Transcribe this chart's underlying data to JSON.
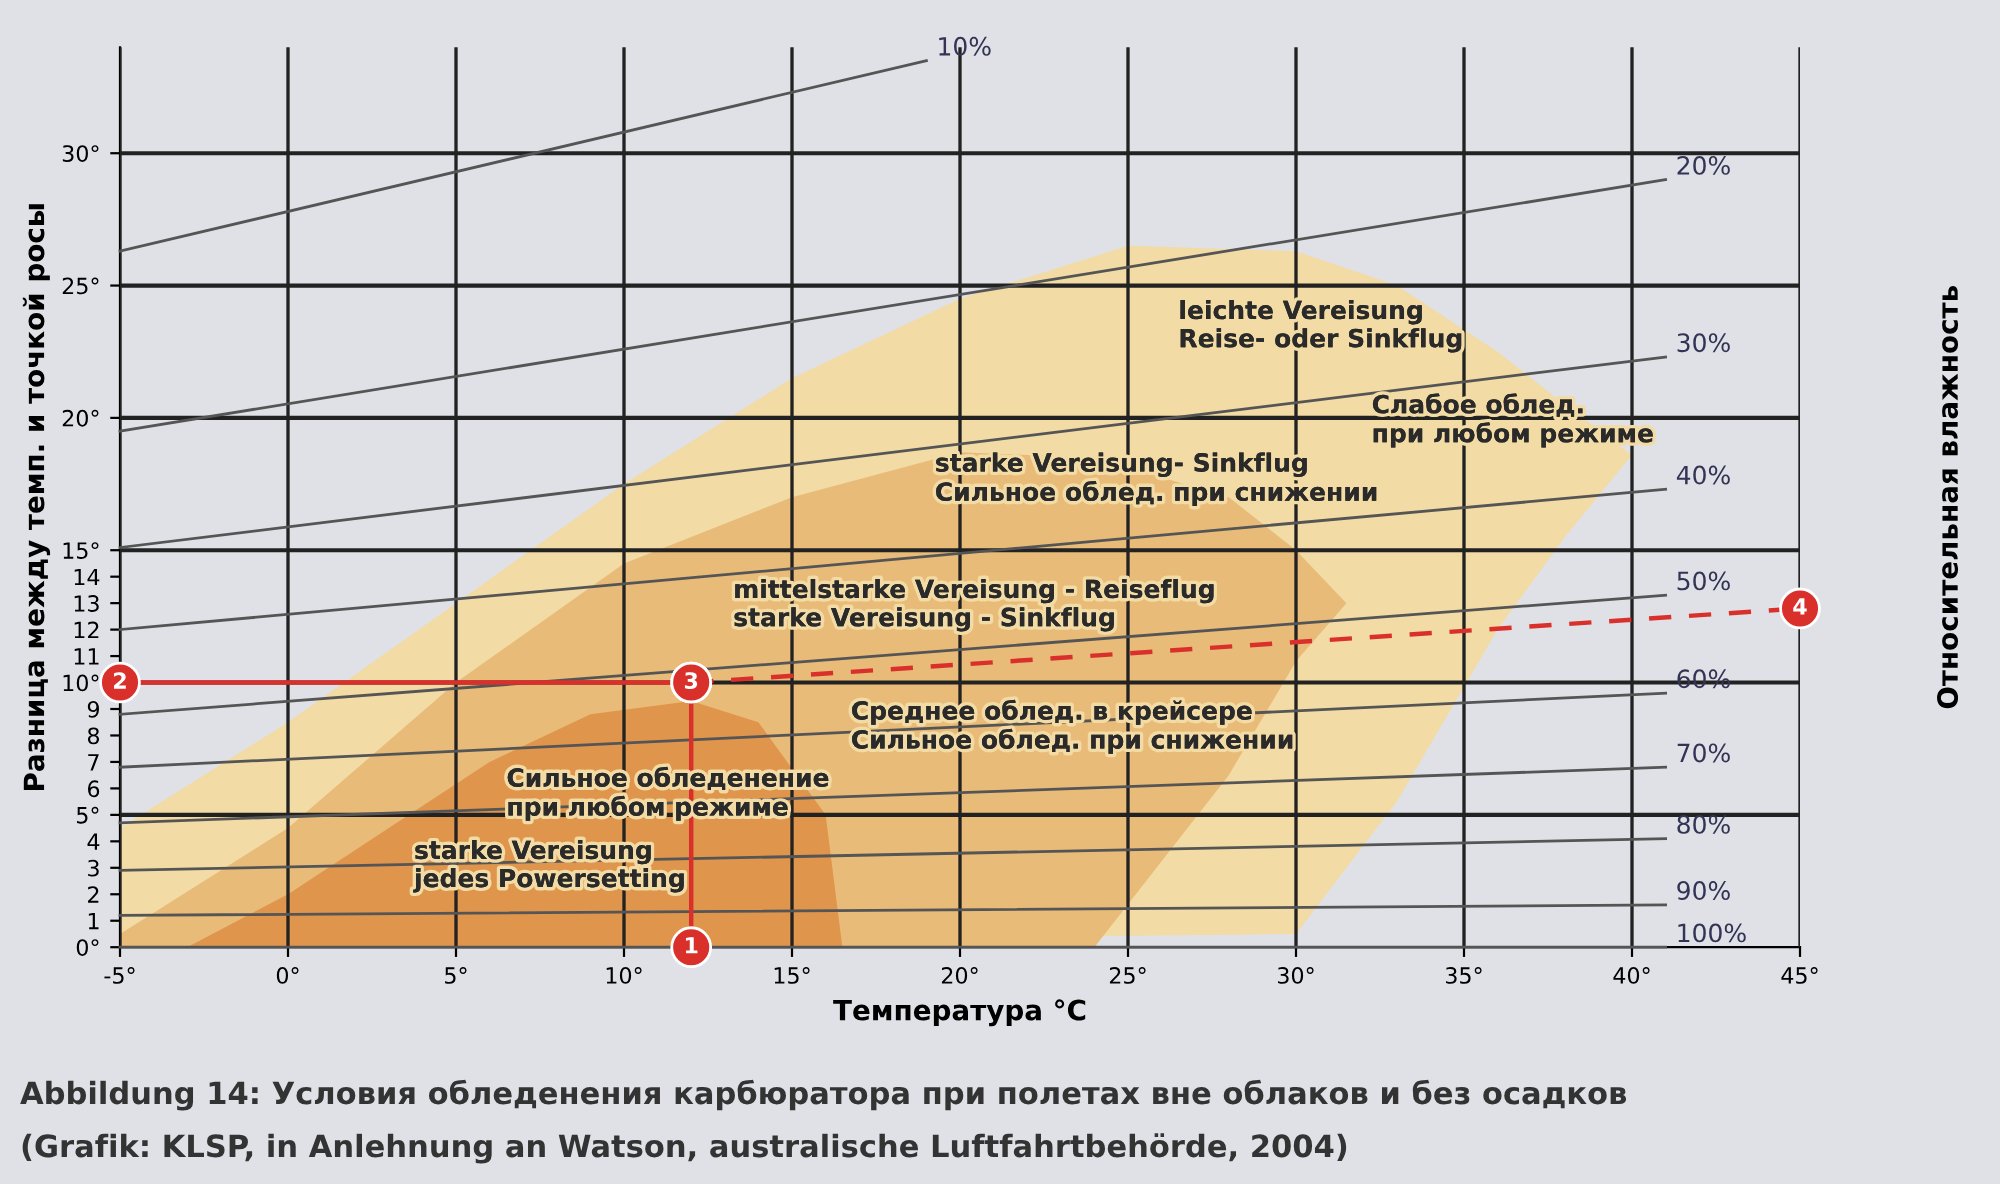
{
  "chart_data": {
    "type": "line",
    "xlabel": "Температура °C",
    "ylabel": "Разница между темп. и точкой росы",
    "y2label": "Относительная влажность",
    "xlim": [
      -5,
      45
    ],
    "ylim": [
      0,
      34
    ],
    "xticks": [
      {
        "value": -5,
        "label": "-5°"
      },
      {
        "value": 0,
        "label": "0°"
      },
      {
        "value": 5,
        "label": "5°"
      },
      {
        "value": 10,
        "label": "10°"
      },
      {
        "value": 15,
        "label": "15°"
      },
      {
        "value": 20,
        "label": "20°"
      },
      {
        "value": 25,
        "label": "25°"
      },
      {
        "value": 30,
        "label": "30°"
      },
      {
        "value": 35,
        "label": "35°"
      },
      {
        "value": 40,
        "label": "40°"
      },
      {
        "value": 45,
        "label": "45°"
      }
    ],
    "yticks": [
      {
        "value": 0,
        "label": "0°"
      },
      1,
      2,
      3,
      4,
      {
        "value": 5,
        "label": "5°"
      },
      6,
      7,
      8,
      9,
      {
        "value": 10,
        "label": "10°"
      },
      11,
      12,
      13,
      14,
      {
        "value": 15,
        "label": "15°"
      },
      {
        "value": 20,
        "label": "20°"
      },
      {
        "value": 25,
        "label": "25°"
      },
      {
        "value": 30,
        "label": "30°"
      }
    ],
    "grid": "x",
    "ref_lines": [
      {
        "axis": "y",
        "value": 5,
        "color": "#222222"
      },
      {
        "axis": "y",
        "value": 10,
        "color": "#222222"
      },
      {
        "axis": "y",
        "value": 15,
        "color": "#222222"
      },
      {
        "axis": "y",
        "value": 20,
        "color": "#222222"
      },
      {
        "axis": "y",
        "value": 25,
        "color": "#222222"
      },
      {
        "axis": "y",
        "value": 30,
        "color": "#222222"
      }
    ],
    "series": [
      {
        "type": "area",
        "color": "#f2dba4",
        "x": [
          -5,
          0,
          5,
          10,
          15,
          20,
          25,
          30,
          33,
          36,
          38,
          40,
          38,
          36,
          33,
          30,
          -5
        ],
        "values": [
          4.5,
          8.5,
          13,
          17.5,
          21.5,
          24.5,
          26.5,
          26.3,
          25,
          22.5,
          20.5,
          18.6,
          15.5,
          12,
          5.5,
          0.5,
          0
        ]
      },
      {
        "type": "area",
        "color": "#e9bb78",
        "x": [
          -5,
          0,
          5,
          10,
          15,
          20,
          24,
          28,
          30,
          31.5,
          30,
          28,
          24,
          -5
        ],
        "values": [
          0.5,
          4.5,
          10,
          14.5,
          17,
          18.7,
          18.5,
          17,
          15,
          13,
          10.8,
          6.5,
          0,
          0
        ]
      },
      {
        "type": "area",
        "color": "#e0954c",
        "x": [
          -3,
          0,
          3,
          6,
          9,
          12,
          14,
          16,
          16.5,
          -3
        ],
        "values": [
          0,
          2,
          4.5,
          7,
          8.8,
          9.3,
          8.5,
          5,
          0,
          0
        ]
      },
      {
        "name": "10%",
        "color": "#555555",
        "x": [
          -5,
          19
        ],
        "values": [
          26.3,
          33.5
        ]
      },
      {
        "name": "20%",
        "color": "#555555",
        "x": [
          -5,
          41
        ],
        "values": [
          19.5,
          29
        ]
      },
      {
        "name": "30%",
        "color": "#555555",
        "x": [
          -5,
          41
        ],
        "values": [
          15.1,
          22.3
        ]
      },
      {
        "name": "40%",
        "color": "#555555",
        "x": [
          -5,
          41
        ],
        "values": [
          12,
          17.3
        ]
      },
      {
        "name": "50%",
        "color": "#555555",
        "x": [
          -5,
          41
        ],
        "values": [
          8.8,
          13.3
        ]
      },
      {
        "name": "60%",
        "color": "#555555",
        "x": [
          -5,
          41
        ],
        "values": [
          6.8,
          9.6
        ]
      },
      {
        "name": "70%",
        "color": "#555555",
        "x": [
          -5,
          41
        ],
        "values": [
          4.7,
          6.8
        ]
      },
      {
        "name": "80%",
        "color": "#555555",
        "x": [
          -5,
          41
        ],
        "values": [
          2.9,
          4.1
        ]
      },
      {
        "name": "90%",
        "color": "#555555",
        "x": [
          -5,
          41
        ],
        "values": [
          1.2,
          1.6
        ]
      },
      {
        "name": "100%",
        "color": "#555555",
        "x": [
          -5,
          41
        ],
        "values": [
          0,
          0
        ]
      },
      {
        "color": "#d9302c",
        "line_style": "solid",
        "marker": "circle",
        "x": [
          12,
          12
        ],
        "values": [
          0,
          10
        ]
      },
      {
        "color": "#d9302c",
        "line_style": "solid",
        "marker": "circle",
        "x": [
          -5,
          12
        ],
        "values": [
          10,
          10
        ]
      },
      {
        "color": "#d9302c",
        "line_style": "dashed",
        "marker": "circle",
        "x": [
          12,
          45
        ],
        "values": [
          10,
          12.8
        ]
      }
    ],
    "annotations": [
      {
        "text": "1",
        "x": 12,
        "y": 0
      },
      {
        "text": "2",
        "x": -5,
        "y": 10
      },
      {
        "text": "3",
        "x": 12,
        "y": 10
      },
      {
        "text": "4",
        "x": 45,
        "y": 12.8
      },
      "leichte Vereisung\nReise- oder Sinkflug",
      "Слабое облед.\nпри любом режиме",
      "starke Vereisung- Sinkflug\nСильное облед. при снижении",
      "mittelstarke Vereisung - Reiseflug\nstarke Vereisung - Sinkflug",
      "Среднее облед. в крейсере\nСильное облед. при снижении",
      "Сильное обледенение\nпри любом режиме",
      "starke Vereisung\njedes Powersetting",
      "Abbildung 14: Условия обледенения карбюратора при полетах вне облаков и без осадков",
      "(Grafik: KLSP, in Anlehnung an Watson, australische Luftfahrtbehörde, 2004)"
    ]
  }
}
